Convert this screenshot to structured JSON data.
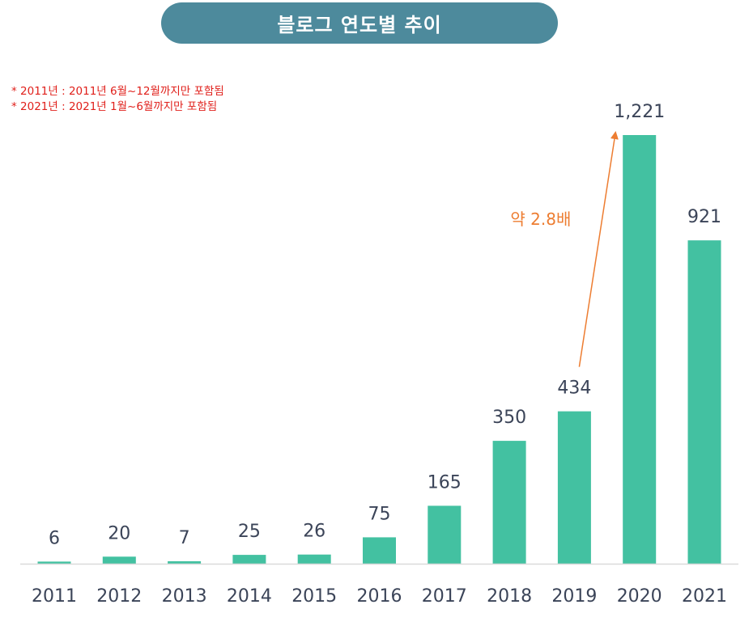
{
  "header": {
    "title": "블로그 연도별 추이"
  },
  "notes": [
    "* 2011년 : 2011년 6월~12월까지만 포함됨",
    "* 2021년 : 2021년 1월~6월까지만 포함됨"
  ],
  "colors": {
    "bar": "#43c1a1",
    "title_bg": "#4d8a9c",
    "note": "#e0201b",
    "annotation": "#ed7d31",
    "axis": "#d9d9d9",
    "text": "#3b4458"
  },
  "chart_data": {
    "type": "bar",
    "title": "블로그 연도별 추이",
    "categories": [
      "2011",
      "2012",
      "2013",
      "2014",
      "2015",
      "2016",
      "2017",
      "2018",
      "2019",
      "2020",
      "2021"
    ],
    "values": [
      6,
      20,
      7,
      25,
      26,
      75,
      165,
      350,
      434,
      1221,
      921
    ],
    "value_labels": [
      "6",
      "20",
      "7",
      "25",
      "26",
      "75",
      "165",
      "350",
      "434",
      "1,221",
      "921"
    ],
    "ylim": [
      0,
      1221
    ],
    "grid": false,
    "legend": "none",
    "annotation": {
      "text": "약 2.8배",
      "from": "2019",
      "to": "2020"
    }
  }
}
